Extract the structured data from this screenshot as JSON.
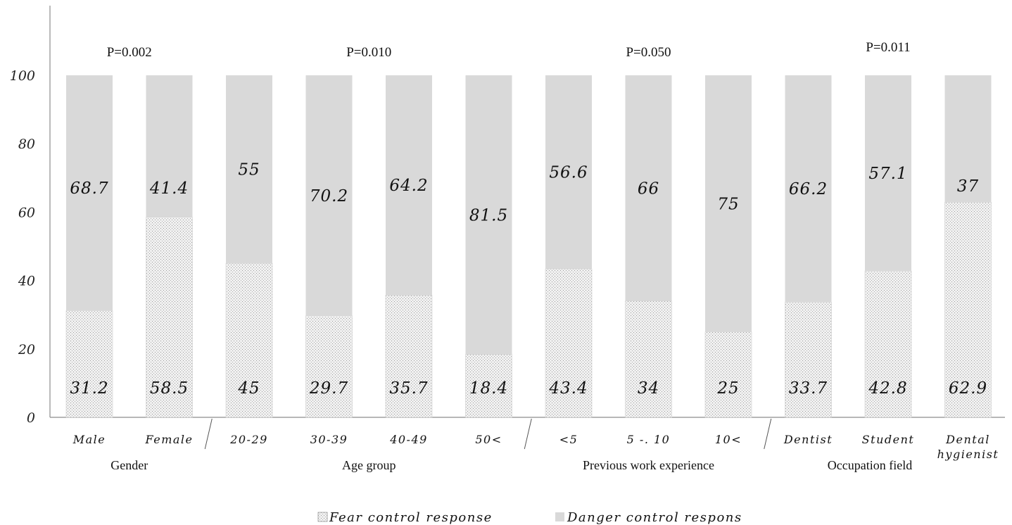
{
  "chart_data": {
    "type": "bar",
    "stacked": true,
    "yticks": [
      "0",
      "20",
      "40",
      "60",
      "80",
      "100"
    ],
    "ylim": [
      0,
      100
    ],
    "categories": [
      "Male",
      "Female",
      "20-29",
      "30-39",
      "40-49",
      "50<",
      "<5",
      "5 -. 10",
      "10<",
      "Dentist",
      "Student",
      "Dental hygienist"
    ],
    "category_lines": [
      [
        "Male"
      ],
      [
        "Female"
      ],
      [
        "20-29"
      ],
      [
        "30-39"
      ],
      [
        "40-49"
      ],
      [
        "50<"
      ],
      [
        "<5"
      ],
      [
        "5 -. 10"
      ],
      [
        "10<"
      ],
      [
        "Dentist"
      ],
      [
        "Student"
      ],
      [
        "Dental",
        "hygienist"
      ]
    ],
    "series": [
      {
        "name": "Fear control response",
        "values": [
          31.2,
          58.5,
          45,
          29.7,
          35.7,
          18.4,
          43.4,
          34,
          25,
          33.7,
          42.8,
          62.9
        ],
        "labels": [
          "31.2",
          "58.5",
          "45",
          "29.7",
          "35.7",
          "18.4",
          "43.4",
          "34",
          "25",
          "33.7",
          "42.8",
          "62.9"
        ]
      },
      {
        "name": "Danger control respons",
        "values": [
          68.7,
          41.4,
          55,
          70.2,
          64.2,
          81.5,
          56.6,
          66,
          75,
          66.2,
          57.1,
          37
        ],
        "labels": [
          "68.7",
          "41.4",
          "55",
          "70.2",
          "64.2",
          "81.5",
          "56.6",
          "66",
          "75",
          "66.2",
          "57.1",
          "37"
        ]
      }
    ],
    "groups": [
      {
        "label": "Gender",
        "start": 0,
        "end": 1,
        "p_value": "P=0.002"
      },
      {
        "label": "Age group",
        "start": 2,
        "end": 5,
        "p_value": "P=0.010"
      },
      {
        "label": "Previous work experience",
        "start": 6,
        "end": 8,
        "p_value": "P=0.050"
      },
      {
        "label": "Occupation field",
        "start": 9,
        "end": 11,
        "p_value": "P=0.011"
      }
    ],
    "legend_position": "bottom",
    "colors": {
      "fear": "#f0f0f0",
      "fear_dots": "#9a9a9a",
      "danger": "#d9d9d9",
      "axis": "#8c8c8c"
    }
  }
}
